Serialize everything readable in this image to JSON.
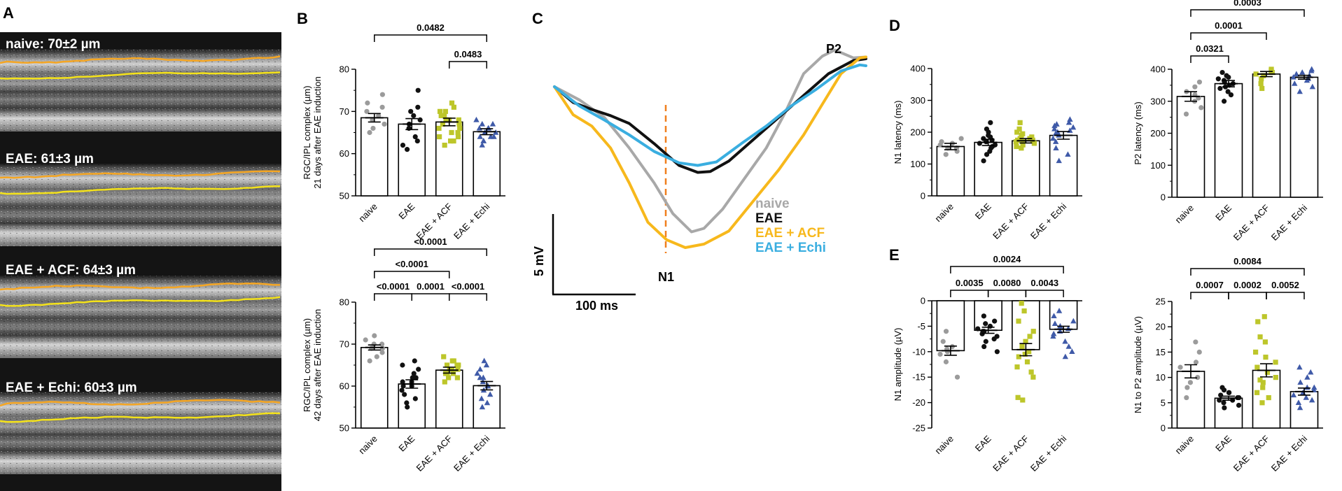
{
  "panel_labels": {
    "a": "A",
    "b": "B",
    "c": "C",
    "d": "D",
    "e": "E"
  },
  "group_colors": {
    "naive": "#9b9b9b",
    "EAE": "#111111",
    "EAE + ACF": "#bdc62a",
    "EAE + Echi": "#3f5aa8"
  },
  "oct": {
    "layer_colors": {
      "upper": "#f5a623",
      "lower": "#f4e21a"
    },
    "labels": [
      {
        "text": "naive: 70±2 µm"
      },
      {
        "text": "EAE: 61±3 µm"
      },
      {
        "text": "EAE + ACF: 64±3 µm"
      },
      {
        "text": "EAE + Echi: 60±3 µm"
      }
    ]
  },
  "erg": {
    "legend": [
      {
        "name": "naive",
        "color": "#a8a8a8"
      },
      {
        "name": "EAE",
        "color": "#111111"
      },
      {
        "name": "EAE + ACF",
        "color": "#f7b81c"
      },
      {
        "name": "EAE + Echi",
        "color": "#3aaee0"
      }
    ],
    "n1_label": "N1",
    "p2_label": "P2",
    "scale_voltage": "5 mV",
    "scale_time": "100 ms",
    "n1_marker_color": "#f07f1e",
    "traces": [
      {
        "name": "naive",
        "color": "#a8a8a8",
        "points": [
          [
            0,
            0
          ],
          [
            20,
            -1.5
          ],
          [
            40,
            -3.5
          ],
          [
            60,
            -7
          ],
          [
            80,
            -11
          ],
          [
            95,
            -14.5
          ],
          [
            110,
            -16.6
          ],
          [
            120,
            -16.2
          ],
          [
            135,
            -14
          ],
          [
            150,
            -11
          ],
          [
            170,
            -7
          ],
          [
            185,
            -3
          ],
          [
            200,
            1.5
          ],
          [
            215,
            3.5
          ],
          [
            225,
            4.2
          ],
          [
            240,
            3.3
          ],
          [
            250,
            3.4
          ]
        ]
      },
      {
        "name": "EAE",
        "color": "#111111",
        "points": [
          [
            0,
            0
          ],
          [
            15,
            -1.8
          ],
          [
            30,
            -2.6
          ],
          [
            45,
            -3.3
          ],
          [
            60,
            -4.2
          ],
          [
            80,
            -6.5
          ],
          [
            100,
            -9
          ],
          [
            115,
            -9.8
          ],
          [
            125,
            -9.7
          ],
          [
            140,
            -8.5
          ],
          [
            160,
            -6
          ],
          [
            180,
            -3.5
          ],
          [
            200,
            -1
          ],
          [
            220,
            1.5
          ],
          [
            240,
            3
          ],
          [
            250,
            3.2
          ]
        ]
      },
      {
        "name": "EAE + ACF",
        "color": "#f7b81c",
        "points": [
          [
            0,
            0
          ],
          [
            15,
            -3.2
          ],
          [
            30,
            -4.5
          ],
          [
            45,
            -7
          ],
          [
            60,
            -11
          ],
          [
            75,
            -15.5
          ],
          [
            90,
            -17.5
          ],
          [
            105,
            -18.4
          ],
          [
            120,
            -18
          ],
          [
            140,
            -16.5
          ],
          [
            160,
            -13
          ],
          [
            180,
            -9.5
          ],
          [
            200,
            -5.5
          ],
          [
            215,
            -2
          ],
          [
            230,
            1.5
          ],
          [
            245,
            3.3
          ],
          [
            250,
            3.4
          ]
        ]
      },
      {
        "name": "EAE + Echi",
        "color": "#3aaee0",
        "points": [
          [
            0,
            0
          ],
          [
            20,
            -2.2
          ],
          [
            40,
            -3.8
          ],
          [
            60,
            -5.5
          ],
          [
            80,
            -7.4
          ],
          [
            100,
            -8.7
          ],
          [
            115,
            -9
          ],
          [
            130,
            -8.6
          ],
          [
            150,
            -6.5
          ],
          [
            170,
            -4.5
          ],
          [
            190,
            -2.2
          ],
          [
            210,
            -0.3
          ],
          [
            230,
            1.8
          ],
          [
            245,
            2.5
          ],
          [
            250,
            2.4
          ]
        ]
      }
    ]
  },
  "chart_data": [
    {
      "type": "bar",
      "panel": "B",
      "subpanel": "21 days",
      "ylabel": "RGC/IPL complex (µm)\n21 days after EAE induction",
      "ylim": [
        50,
        80
      ],
      "yticks": [
        50,
        60,
        70,
        80
      ],
      "categories": [
        "naive",
        "EAE",
        "EAE + ACF",
        "EAE + Echi"
      ],
      "means": [
        68.5,
        67,
        67.5,
        65.2
      ],
      "sem": [
        1,
        1.3,
        0.9,
        0.7
      ],
      "points": [
        [
          65,
          66,
          67,
          68,
          69,
          70,
          71,
          72,
          74
        ],
        [
          61,
          62,
          63,
          64,
          66,
          67,
          68,
          69,
          70,
          71,
          75
        ],
        [
          62,
          63,
          63,
          64,
          64,
          65,
          65,
          66,
          66,
          67,
          67,
          68,
          68,
          68,
          69,
          69,
          70,
          70,
          71,
          72
        ],
        [
          62,
          63,
          63,
          64,
          64,
          64,
          65,
          65,
          66,
          66,
          66,
          67,
          67,
          68
        ]
      ],
      "comparisons": [
        {
          "from": 0,
          "to": 3,
          "label": "0.0482"
        },
        {
          "from": 2,
          "to": 3,
          "label": "0.0483"
        }
      ]
    },
    {
      "type": "bar",
      "panel": "B",
      "subpanel": "42 days",
      "ylabel": "RGC/IPL complex (µm)\n42 days after EAE induction",
      "ylim": [
        50,
        80
      ],
      "yticks": [
        50,
        60,
        70,
        80
      ],
      "categories": [
        "naive",
        "EAE",
        "EAE + ACF",
        "EAE + Echi"
      ],
      "means": [
        69.2,
        60.5,
        63.8,
        60.1
      ],
      "sem": [
        0.6,
        1,
        0.7,
        1
      ],
      "points": [
        [
          66,
          67,
          68,
          69,
          69,
          70,
          70,
          71,
          72
        ],
        [
          55,
          56,
          57,
          58,
          59,
          60,
          60,
          61,
          61,
          62,
          62,
          63,
          64,
          65,
          66
        ],
        [
          61,
          62,
          62,
          63,
          63,
          63,
          64,
          64,
          64,
          65,
          65,
          65,
          66,
          66,
          67
        ],
        [
          55,
          56,
          57,
          58,
          59,
          60,
          60,
          61,
          62,
          62,
          63,
          64,
          65,
          66
        ]
      ],
      "comparisons": [
        {
          "from": 0,
          "to": 1,
          "label": "<0.0001"
        },
        {
          "from": 1,
          "to": 2,
          "label": "0.0001"
        },
        {
          "from": 2,
          "to": 3,
          "label": "<0.0001"
        },
        {
          "from": 0,
          "to": 2,
          "label": "<0.0001"
        },
        {
          "from": 0,
          "to": 3,
          "label": "<0.0001"
        }
      ]
    },
    {
      "type": "bar",
      "panel": "D",
      "subpanel": "N1 latency",
      "ylabel": "N1 latency (ms)",
      "ylim": [
        0,
        400
      ],
      "yticks": [
        0,
        100,
        200,
        300,
        400
      ],
      "categories": [
        "naive",
        "EAE",
        "EAE + ACF",
        "EAE + Echi"
      ],
      "means": [
        155,
        168,
        173,
        190
      ],
      "sem": [
        10,
        10,
        7,
        12
      ],
      "points": [
        [
          130,
          140,
          150,
          150,
          160,
          165,
          170,
          180
        ],
        [
          110,
          130,
          140,
          150,
          155,
          160,
          165,
          170,
          175,
          180,
          185,
          190,
          200,
          210,
          230
        ],
        [
          150,
          155,
          160,
          165,
          170,
          170,
          175,
          175,
          180,
          180,
          185,
          190,
          195,
          200,
          210,
          230
        ],
        [
          110,
          130,
          150,
          170,
          180,
          190,
          195,
          200,
          205,
          210,
          215,
          220,
          225,
          230,
          240
        ]
      ],
      "comparisons": []
    },
    {
      "type": "bar",
      "panel": "D",
      "subpanel": "P2 latency",
      "ylabel": "P2 latency (ms)",
      "ylim": [
        0,
        400
      ],
      "yticks": [
        0,
        100,
        200,
        300,
        400
      ],
      "categories": [
        "naive",
        "EAE",
        "EAE + ACF",
        "EAE + Echi"
      ],
      "means": [
        315,
        355,
        385,
        375
      ],
      "sem": [
        15,
        10,
        8,
        6
      ],
      "points": [
        [
          260,
          280,
          300,
          310,
          320,
          330,
          345,
          360
        ],
        [
          300,
          320,
          330,
          340,
          345,
          350,
          355,
          360,
          365,
          370,
          375,
          380,
          390
        ],
        [
          340,
          355,
          370,
          380,
          385,
          390,
          395,
          400
        ],
        [
          330,
          345,
          355,
          365,
          370,
          375,
          380,
          385,
          390,
          395,
          400
        ]
      ],
      "comparisons": [
        {
          "from": 0,
          "to": 1,
          "label": "0.0321"
        },
        {
          "from": 0,
          "to": 2,
          "label": "0.0001"
        },
        {
          "from": 0,
          "to": 3,
          "label": "0.0003"
        }
      ]
    },
    {
      "type": "bar",
      "panel": "E",
      "subpanel": "N1 amplitude",
      "ylabel": "N1 amplitude (µV)",
      "ylim": [
        -25,
        0
      ],
      "yticks": [
        -25,
        -20,
        -15,
        -10,
        -5,
        0
      ],
      "categories": [
        "naive",
        "EAE",
        "EAE + ACF",
        "EAE + Echi"
      ],
      "means": [
        -9.8,
        -5.8,
        -9.6,
        -5.6
      ],
      "sem": [
        0.9,
        0.6,
        1.2,
        0.6
      ],
      "points": [
        [
          -6,
          -8,
          -9,
          -9.5,
          -10,
          -10.5,
          -12,
          -15
        ],
        [
          -3,
          -4,
          -4.5,
          -5,
          -5.5,
          -6,
          -6,
          -6.5,
          -7,
          -7.5,
          -8,
          -9,
          -10
        ],
        [
          -0.5,
          -2,
          -4,
          -6,
          -7,
          -8,
          -9,
          -10,
          -10.5,
          -11,
          -12,
          -13,
          -14,
          -15,
          -19,
          -19.5
        ],
        [
          -2,
          -3,
          -4,
          -4.5,
          -5,
          -5.5,
          -6,
          -6.5,
          -7,
          -8,
          -9,
          -10,
          -11
        ]
      ],
      "comparisons": [
        {
          "from": 0,
          "to": 1,
          "label": "0.0035"
        },
        {
          "from": 1,
          "to": 2,
          "label": "0.0080"
        },
        {
          "from": 2,
          "to": 3,
          "label": "0.0043"
        },
        {
          "from": 0,
          "to": 3,
          "label": "0.0024"
        }
      ]
    },
    {
      "type": "bar",
      "panel": "E",
      "subpanel": "N1 to P2 amplitude",
      "ylabel": "N1 to P2 amplitude (µV)",
      "ylim": [
        0,
        25
      ],
      "yticks": [
        0,
        5,
        10,
        15,
        20,
        25
      ],
      "categories": [
        "naive",
        "EAE",
        "EAE + ACF",
        "EAE + Echi"
      ],
      "means": [
        11.2,
        5.9,
        11.4,
        7.2
      ],
      "sem": [
        1.3,
        0.4,
        1.3,
        0.7
      ],
      "points": [
        [
          6,
          8,
          9,
          10,
          12,
          13,
          15,
          17
        ],
        [
          4,
          4.5,
          5,
          5.5,
          5.5,
          6,
          6,
          6.5,
          7,
          7,
          7.5,
          8
        ],
        [
          5,
          6,
          7,
          8,
          9,
          9.5,
          10,
          11,
          12,
          13,
          14,
          15,
          17,
          18,
          21,
          22
        ],
        [
          4,
          5,
          5.5,
          6,
          6.5,
          7,
          7.5,
          8,
          8,
          9,
          10,
          11,
          12
        ]
      ],
      "comparisons": [
        {
          "from": 0,
          "to": 1,
          "label": "0.0007"
        },
        {
          "from": 1,
          "to": 2,
          "label": "0.0002"
        },
        {
          "from": 2,
          "to": 3,
          "label": "0.0052"
        },
        {
          "from": 0,
          "to": 3,
          "label": "0.0084"
        }
      ]
    }
  ]
}
